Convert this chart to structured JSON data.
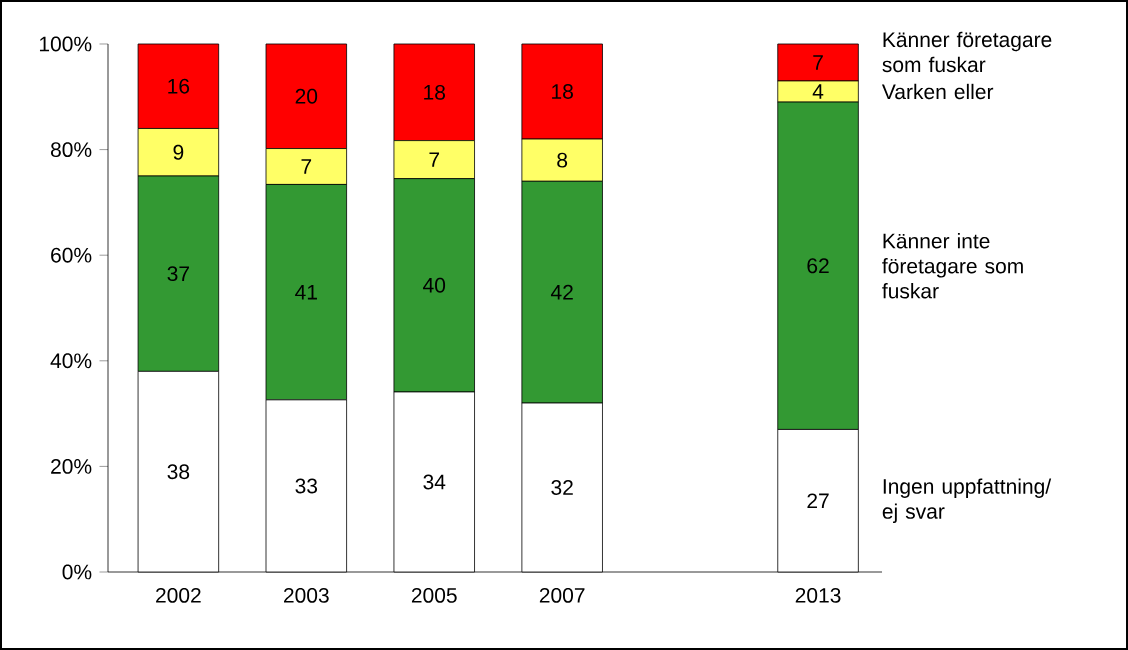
{
  "chart_data": {
    "type": "bar",
    "stacked": true,
    "categories": [
      "2002",
      "2003",
      "2005",
      "2007",
      null,
      "2013"
    ],
    "series": [
      {
        "name": "Ingen uppfattning/ ej svar",
        "color": "#ffffff",
        "values": [
          38,
          32.6,
          34.1,
          32,
          null,
          27
        ],
        "value_labels": [
          "38",
          "33",
          "34",
          "32",
          null,
          "27"
        ]
      },
      {
        "name": "Känner inte företagare som fuskar",
        "color": "#339933",
        "values": [
          37,
          40.8,
          40.4,
          42,
          null,
          62
        ],
        "value_labels": [
          "37",
          "41",
          "40",
          "42",
          null,
          "62"
        ]
      },
      {
        "name": "Varken eller",
        "color": "#ffff66",
        "values": [
          9,
          6.8,
          7.2,
          8,
          null,
          4
        ],
        "value_labels": [
          "9",
          "7",
          "7",
          "8",
          null,
          "4"
        ]
      },
      {
        "name": "Känner företagare som fuskar",
        "color": "#ff0000",
        "values": [
          16,
          19.8,
          18.3,
          18,
          null,
          7
        ],
        "value_labels": [
          "16",
          "20",
          "18",
          "18",
          null,
          "7"
        ]
      }
    ],
    "ylim": [
      0,
      100
    ],
    "yticks": [
      {
        "value": 0,
        "label": "0%"
      },
      {
        "value": 20,
        "label": "20%"
      },
      {
        "value": 40,
        "label": "40%"
      },
      {
        "value": 60,
        "label": "60%"
      },
      {
        "value": 80,
        "label": "80%"
      },
      {
        "value": 100,
        "label": "100%"
      }
    ]
  }
}
